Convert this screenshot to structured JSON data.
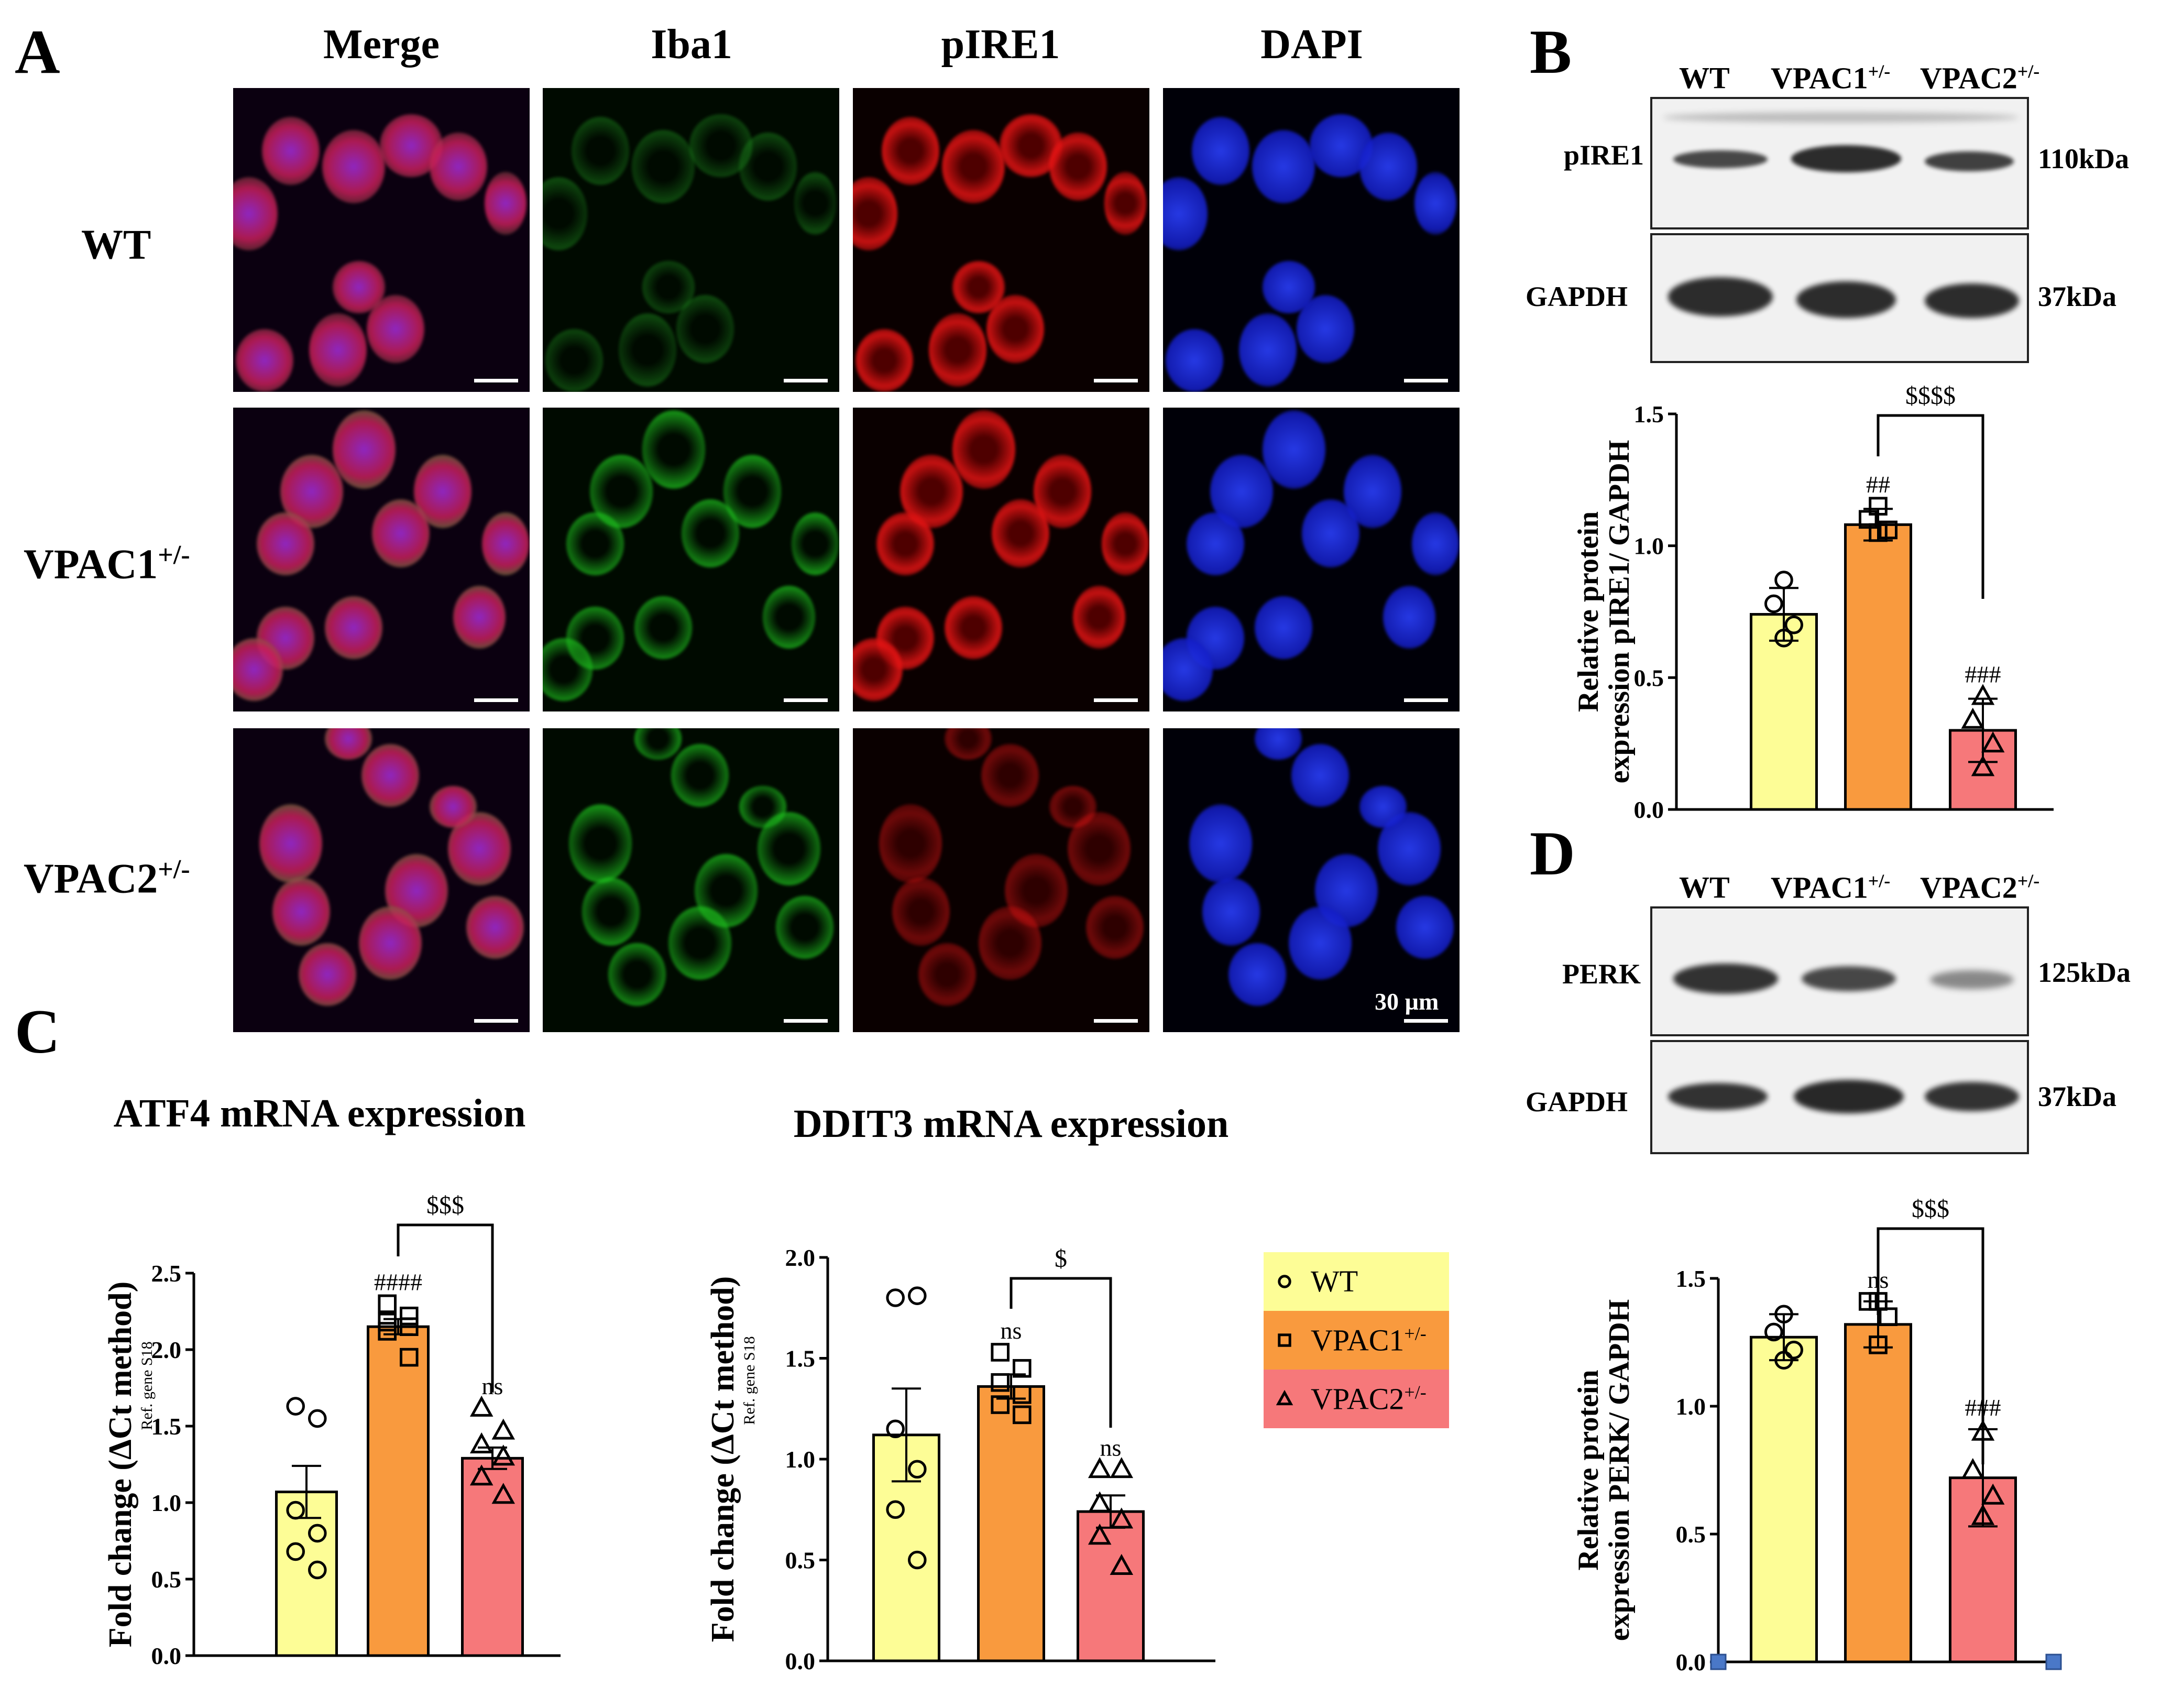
{
  "panels": {
    "A": "A",
    "B": "B",
    "C": "C",
    "D": "D"
  },
  "panel_a": {
    "columns": [
      "Merge",
      "Iba1",
      "pIRE1",
      "DAPI"
    ],
    "rows": [
      {
        "base": "WT",
        "sup": ""
      },
      {
        "base": "VPAC1",
        "sup": "+/-"
      },
      {
        "base": "VPAC2",
        "sup": "+/-"
      }
    ],
    "scale_label": "30 µm"
  },
  "blot_groups": {
    "g1": {
      "base": "WT",
      "sup": ""
    },
    "g2": {
      "base": "VPAC1",
      "sup": "+/-"
    },
    "g3": {
      "base": "VPAC2",
      "sup": "+/-"
    }
  },
  "panel_b": {
    "target_label": "pIRE1",
    "target_kda": "110kDa",
    "loading_label": "GAPDH",
    "loading_kda": "37kDa"
  },
  "panel_d": {
    "target_label": "PERK",
    "target_kda": "125kDa",
    "loading_label": "GAPDH",
    "loading_kda": "37kDa"
  },
  "legend": {
    "items": [
      {
        "base": "WT",
        "sup": "",
        "color": "#fdfd96",
        "marker": "circle"
      },
      {
        "base": "VPAC1",
        "sup": "+/-",
        "color": "#f99a3e",
        "marker": "square"
      },
      {
        "base": "VPAC2",
        "sup": "+/-",
        "color": "#f6787a",
        "marker": "triangle"
      }
    ]
  },
  "chart_data": [
    {
      "id": "B",
      "type": "bar",
      "categories": [
        "WT",
        "VPAC1+/-",
        "VPAC2+/-"
      ],
      "colors": [
        "#fdfd96",
        "#f99a3e",
        "#f6787a"
      ],
      "markers": [
        "circle",
        "square",
        "triangle"
      ],
      "values": [
        0.74,
        1.08,
        0.3
      ],
      "errors": [
        0.1,
        0.06,
        0.12
      ],
      "points": [
        [
          0.87,
          0.78,
          0.7,
          0.65
        ],
        [
          1.15,
          1.1,
          1.06,
          1.05
        ],
        [
          0.43,
          0.34,
          0.25,
          0.16
        ]
      ],
      "ylabel_lines": [
        "Relative protein",
        "expression pIRE1/ GAPDH"
      ],
      "ylim": [
        0,
        1.5
      ],
      "yticks": [
        0.0,
        0.5,
        1.0,
        1.5
      ],
      "ytick_labels": [
        "0.0",
        "0.5",
        "1.0",
        "1.5"
      ],
      "bar_labels": [
        "",
        "##",
        "###"
      ],
      "comparison": {
        "from": 1,
        "to": 2,
        "label": "$$$$"
      }
    },
    {
      "id": "C-ATF4",
      "type": "bar",
      "title": "ATF4  mRNA expression",
      "categories": [
        "WT",
        "VPAC1+/-",
        "VPAC2+/-"
      ],
      "colors": [
        "#fdfd96",
        "#f99a3e",
        "#f6787a"
      ],
      "markers": [
        "circle",
        "square",
        "triangle"
      ],
      "values": [
        1.07,
        2.15,
        1.29
      ],
      "errors": [
        0.17,
        0.05,
        0.07
      ],
      "points": [
        [
          1.63,
          1.55,
          0.95,
          0.8,
          0.68,
          0.56
        ],
        [
          2.3,
          2.22,
          2.18,
          2.15,
          2.12,
          1.95
        ],
        [
          1.62,
          1.47,
          1.38,
          1.3,
          1.17,
          1.05
        ]
      ],
      "ylabel": "Fold change (ΔCt method)",
      "ylabel_sub": "Ref. gene S18",
      "ylim": [
        0,
        2.5
      ],
      "yticks": [
        0.0,
        0.5,
        1.0,
        1.5,
        2.0,
        2.5
      ],
      "ytick_labels": [
        "0.0",
        "0.5",
        "1.0",
        "1.5",
        "2.0",
        "2.5"
      ],
      "bar_labels": [
        "",
        "####",
        "ns"
      ],
      "comparison": {
        "from": 1,
        "to": 2,
        "label": "$$$"
      }
    },
    {
      "id": "C-DDIT3",
      "type": "bar",
      "title": "DDIT3  mRNA expression",
      "categories": [
        "WT",
        "VPAC1+/-",
        "VPAC2+/-"
      ],
      "colors": [
        "#fdfd96",
        "#f99a3e",
        "#f6787a"
      ],
      "markers": [
        "circle",
        "square",
        "triangle"
      ],
      "values": [
        1.12,
        1.36,
        0.74
      ],
      "errors": [
        0.23,
        0.06,
        0.08
      ],
      "points": [
        [
          1.8,
          1.81,
          1.15,
          0.95,
          0.75,
          0.5
        ],
        [
          1.53,
          1.45,
          1.38,
          1.32,
          1.27,
          1.22
        ],
        [
          0.95,
          0.95,
          0.78,
          0.7,
          0.62,
          0.47
        ]
      ],
      "ylabel": "Fold change (ΔCt method)",
      "ylabel_sub": "Ref. gene S18",
      "ylim": [
        0,
        2.0
      ],
      "yticks": [
        0.0,
        0.5,
        1.0,
        1.5,
        2.0
      ],
      "ytick_labels": [
        "0.0",
        "0.5",
        "1.0",
        "1.5",
        "2.0"
      ],
      "bar_labels": [
        "",
        "ns",
        "ns"
      ],
      "comparison": {
        "from": 1,
        "to": 2,
        "label": "$"
      }
    },
    {
      "id": "D",
      "type": "bar",
      "categories": [
        "WT",
        "VPAC1+/-",
        "VPAC2+/-"
      ],
      "colors": [
        "#fdfd96",
        "#f99a3e",
        "#f6787a"
      ],
      "markers": [
        "circle",
        "square",
        "triangle"
      ],
      "values": [
        1.27,
        1.32,
        0.72
      ],
      "errors": [
        0.09,
        0.09,
        0.19
      ],
      "points": [
        [
          1.36,
          1.29,
          1.22,
          1.18
        ],
        [
          1.41,
          1.41,
          1.35,
          1.24
        ],
        [
          0.9,
          0.75,
          0.65,
          0.57
        ]
      ],
      "ylabel_lines": [
        "Relative protein",
        "expression PERK/ GAPDH"
      ],
      "ylim": [
        0,
        1.5
      ],
      "yticks": [
        0.0,
        0.5,
        1.0,
        1.5
      ],
      "ytick_labels": [
        "0.0",
        "0.5",
        "1.0",
        "1.5"
      ],
      "bar_labels": [
        "",
        "ns",
        "###"
      ],
      "comparison": {
        "from": 1,
        "to": 2,
        "label": "$$$"
      }
    }
  ]
}
